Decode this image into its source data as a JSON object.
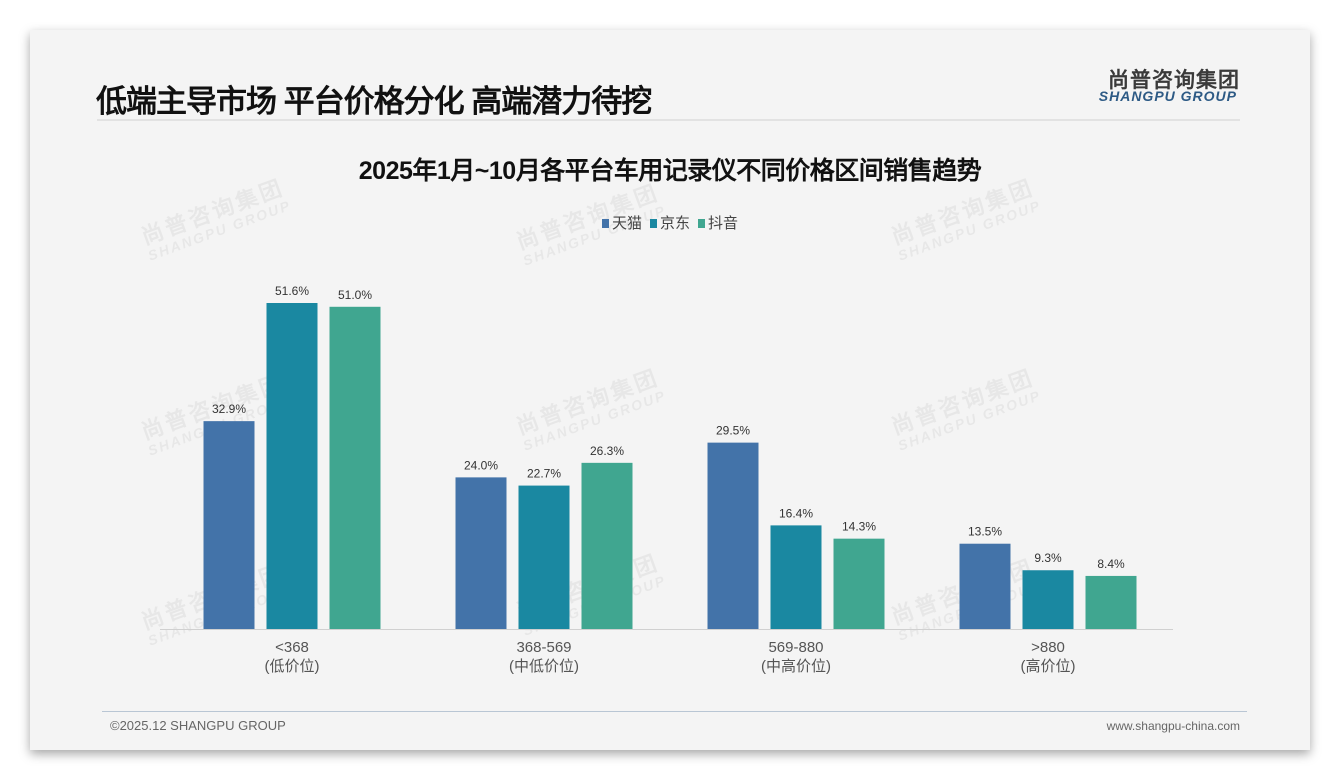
{
  "header": {
    "title": "低端主导市场 平台价格分化 高端潜力待挖",
    "logo_cn": "尚普咨询集团",
    "logo_en": "SHANGPU GROUP"
  },
  "watermark": {
    "cn": "尚普咨询集团",
    "en": "SHANGPU GROUP"
  },
  "footer": {
    "copyright": "©2025.12 SHANGPU GROUP",
    "website": "www.shangpu-china.com"
  },
  "colors": {
    "天猫": "#4373a9",
    "京东": "#1a88a1",
    "抖音": "#40a690"
  },
  "chart_data": {
    "type": "bar",
    "title": "2025年1月~10月各平台车用记录仪不同价格区间销售趋势",
    "legend_position": "top",
    "categories": [
      {
        "range": "<368",
        "tier": "(低价位)"
      },
      {
        "range": "368-569",
        "tier": "(中低价位)"
      },
      {
        "range": "569-880",
        "tier": "(中高价位)"
      },
      {
        "range": ">880",
        "tier": "(高价位)"
      }
    ],
    "series": [
      {
        "name": "天猫",
        "values": [
          32.9,
          24.0,
          29.5,
          13.5
        ]
      },
      {
        "name": "京东",
        "values": [
          51.6,
          22.7,
          16.4,
          9.3
        ]
      },
      {
        "name": "抖音",
        "values": [
          51.0,
          26.3,
          14.3,
          8.4
        ]
      }
    ],
    "unit": "%",
    "ylim": [
      0,
      60
    ],
    "grid": false,
    "xlabel": "",
    "ylabel": ""
  }
}
